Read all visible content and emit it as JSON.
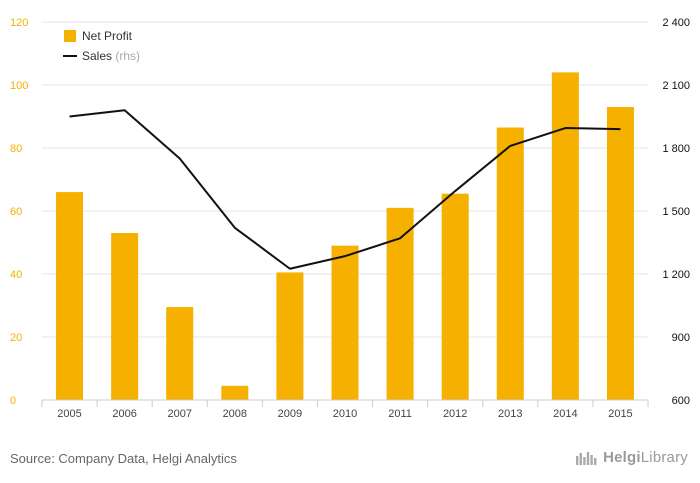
{
  "chart_data": {
    "type": "bar+line",
    "categories": [
      "2005",
      "2006",
      "2007",
      "2008",
      "2009",
      "2010",
      "2011",
      "2012",
      "2013",
      "2014",
      "2015"
    ],
    "series": [
      {
        "name": "Net Profit",
        "kind": "bar",
        "axis": "left",
        "color": "#f5b000",
        "values": [
          66,
          53,
          29.5,
          4.5,
          40.5,
          49,
          61,
          65.5,
          86.5,
          104,
          93
        ]
      },
      {
        "name": "Sales",
        "name_suffix": "(rhs)",
        "kind": "line",
        "axis": "right",
        "color": "#111111",
        "values": [
          1950,
          1980,
          1750,
          1420,
          1225,
          1285,
          1370,
          1595,
          1810,
          1895,
          1890
        ]
      }
    ],
    "y_left": {
      "ylim": [
        0,
        120
      ],
      "ticks": [
        "0",
        "20",
        "40",
        "60",
        "80",
        "100",
        "120"
      ],
      "color": "#f5b000"
    },
    "y_right": {
      "ylim": [
        600,
        2400
      ],
      "ticks": [
        "600",
        "900",
        "1 200",
        "1 500",
        "1 800",
        "2 100",
        "2 400"
      ],
      "color": "#111111"
    },
    "legend_position": "top-left",
    "grid": "horizontal"
  },
  "footer": {
    "source": "Source: Company Data, Helgi Analytics",
    "logo_a": "Helgi",
    "logo_b": "Library"
  }
}
